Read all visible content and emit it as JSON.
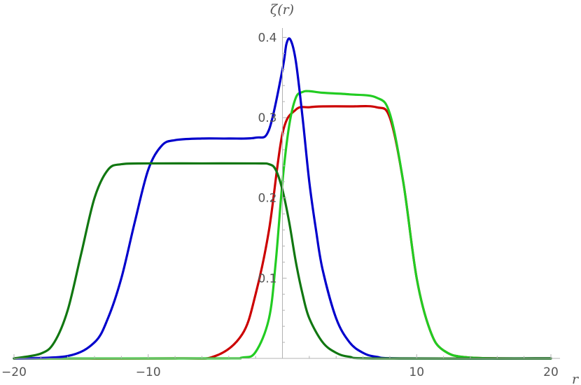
{
  "chart_data": {
    "type": "line",
    "title": "",
    "xlabel": "r",
    "ylabel": "ζ(r)",
    "xlim": [
      -20,
      20
    ],
    "ylim": [
      0,
      0.42
    ],
    "xticks": [
      -20,
      -10,
      10,
      20
    ],
    "yticks": [
      0.1,
      0.2,
      0.3,
      0.4
    ],
    "xtick_labels": [
      "−20",
      "−10",
      "10",
      "20"
    ],
    "ytick_labels": [
      "0.1",
      "0.2",
      "0.3",
      "0.4"
    ],
    "grid": false,
    "series": [
      {
        "color": "#cc0000",
        "x": [
          -20,
          -8,
          -5,
          -3,
          -2,
          -1,
          0,
          1,
          2,
          3,
          5,
          7,
          8,
          9,
          10,
          11,
          12,
          14,
          20
        ],
        "y": [
          0,
          0,
          0.003,
          0.03,
          0.08,
          0.16,
          0.28,
          0.31,
          0.313,
          0.314,
          0.314,
          0.313,
          0.3,
          0.22,
          0.1,
          0.035,
          0.01,
          0.001,
          0
        ]
      },
      {
        "color": "#22cc22",
        "x": [
          -20,
          -5,
          -3,
          -2,
          -1,
          -0.5,
          0,
          0.5,
          1,
          1.5,
          2,
          3,
          5,
          7,
          8,
          9,
          10,
          11,
          12,
          14,
          20
        ],
        "y": [
          0,
          0,
          0.001,
          0.008,
          0.05,
          0.12,
          0.22,
          0.29,
          0.325,
          0.332,
          0.333,
          0.331,
          0.329,
          0.325,
          0.305,
          0.22,
          0.1,
          0.035,
          0.01,
          0.001,
          0
        ]
      },
      {
        "color": "#0000cc",
        "x": [
          -20,
          -16,
          -14,
          -13,
          -12,
          -11,
          -10,
          -9,
          -8,
          -6,
          -4,
          -2,
          -1,
          0,
          0.3,
          0.6,
          1,
          1.5,
          2,
          2.5,
          3,
          4,
          5,
          6,
          7,
          9,
          20
        ],
        "y": [
          0,
          0.003,
          0.02,
          0.05,
          0.1,
          0.17,
          0.235,
          0.265,
          0.272,
          0.274,
          0.274,
          0.275,
          0.285,
          0.36,
          0.392,
          0.397,
          0.37,
          0.3,
          0.22,
          0.16,
          0.11,
          0.05,
          0.02,
          0.007,
          0.002,
          0,
          0
        ]
      },
      {
        "color": "#117711",
        "x": [
          -20,
          -18,
          -17,
          -16,
          -15,
          -14,
          -13,
          -12,
          -10,
          -6,
          -2,
          -1,
          -0.5,
          0,
          0.5,
          1,
          1.5,
          2,
          3,
          4,
          5,
          7,
          20
        ],
        "y": [
          0,
          0.006,
          0.02,
          0.06,
          0.13,
          0.2,
          0.235,
          0.242,
          0.243,
          0.243,
          0.243,
          0.242,
          0.235,
          0.21,
          0.17,
          0.12,
          0.08,
          0.05,
          0.02,
          0.007,
          0.002,
          0,
          0
        ]
      }
    ]
  }
}
